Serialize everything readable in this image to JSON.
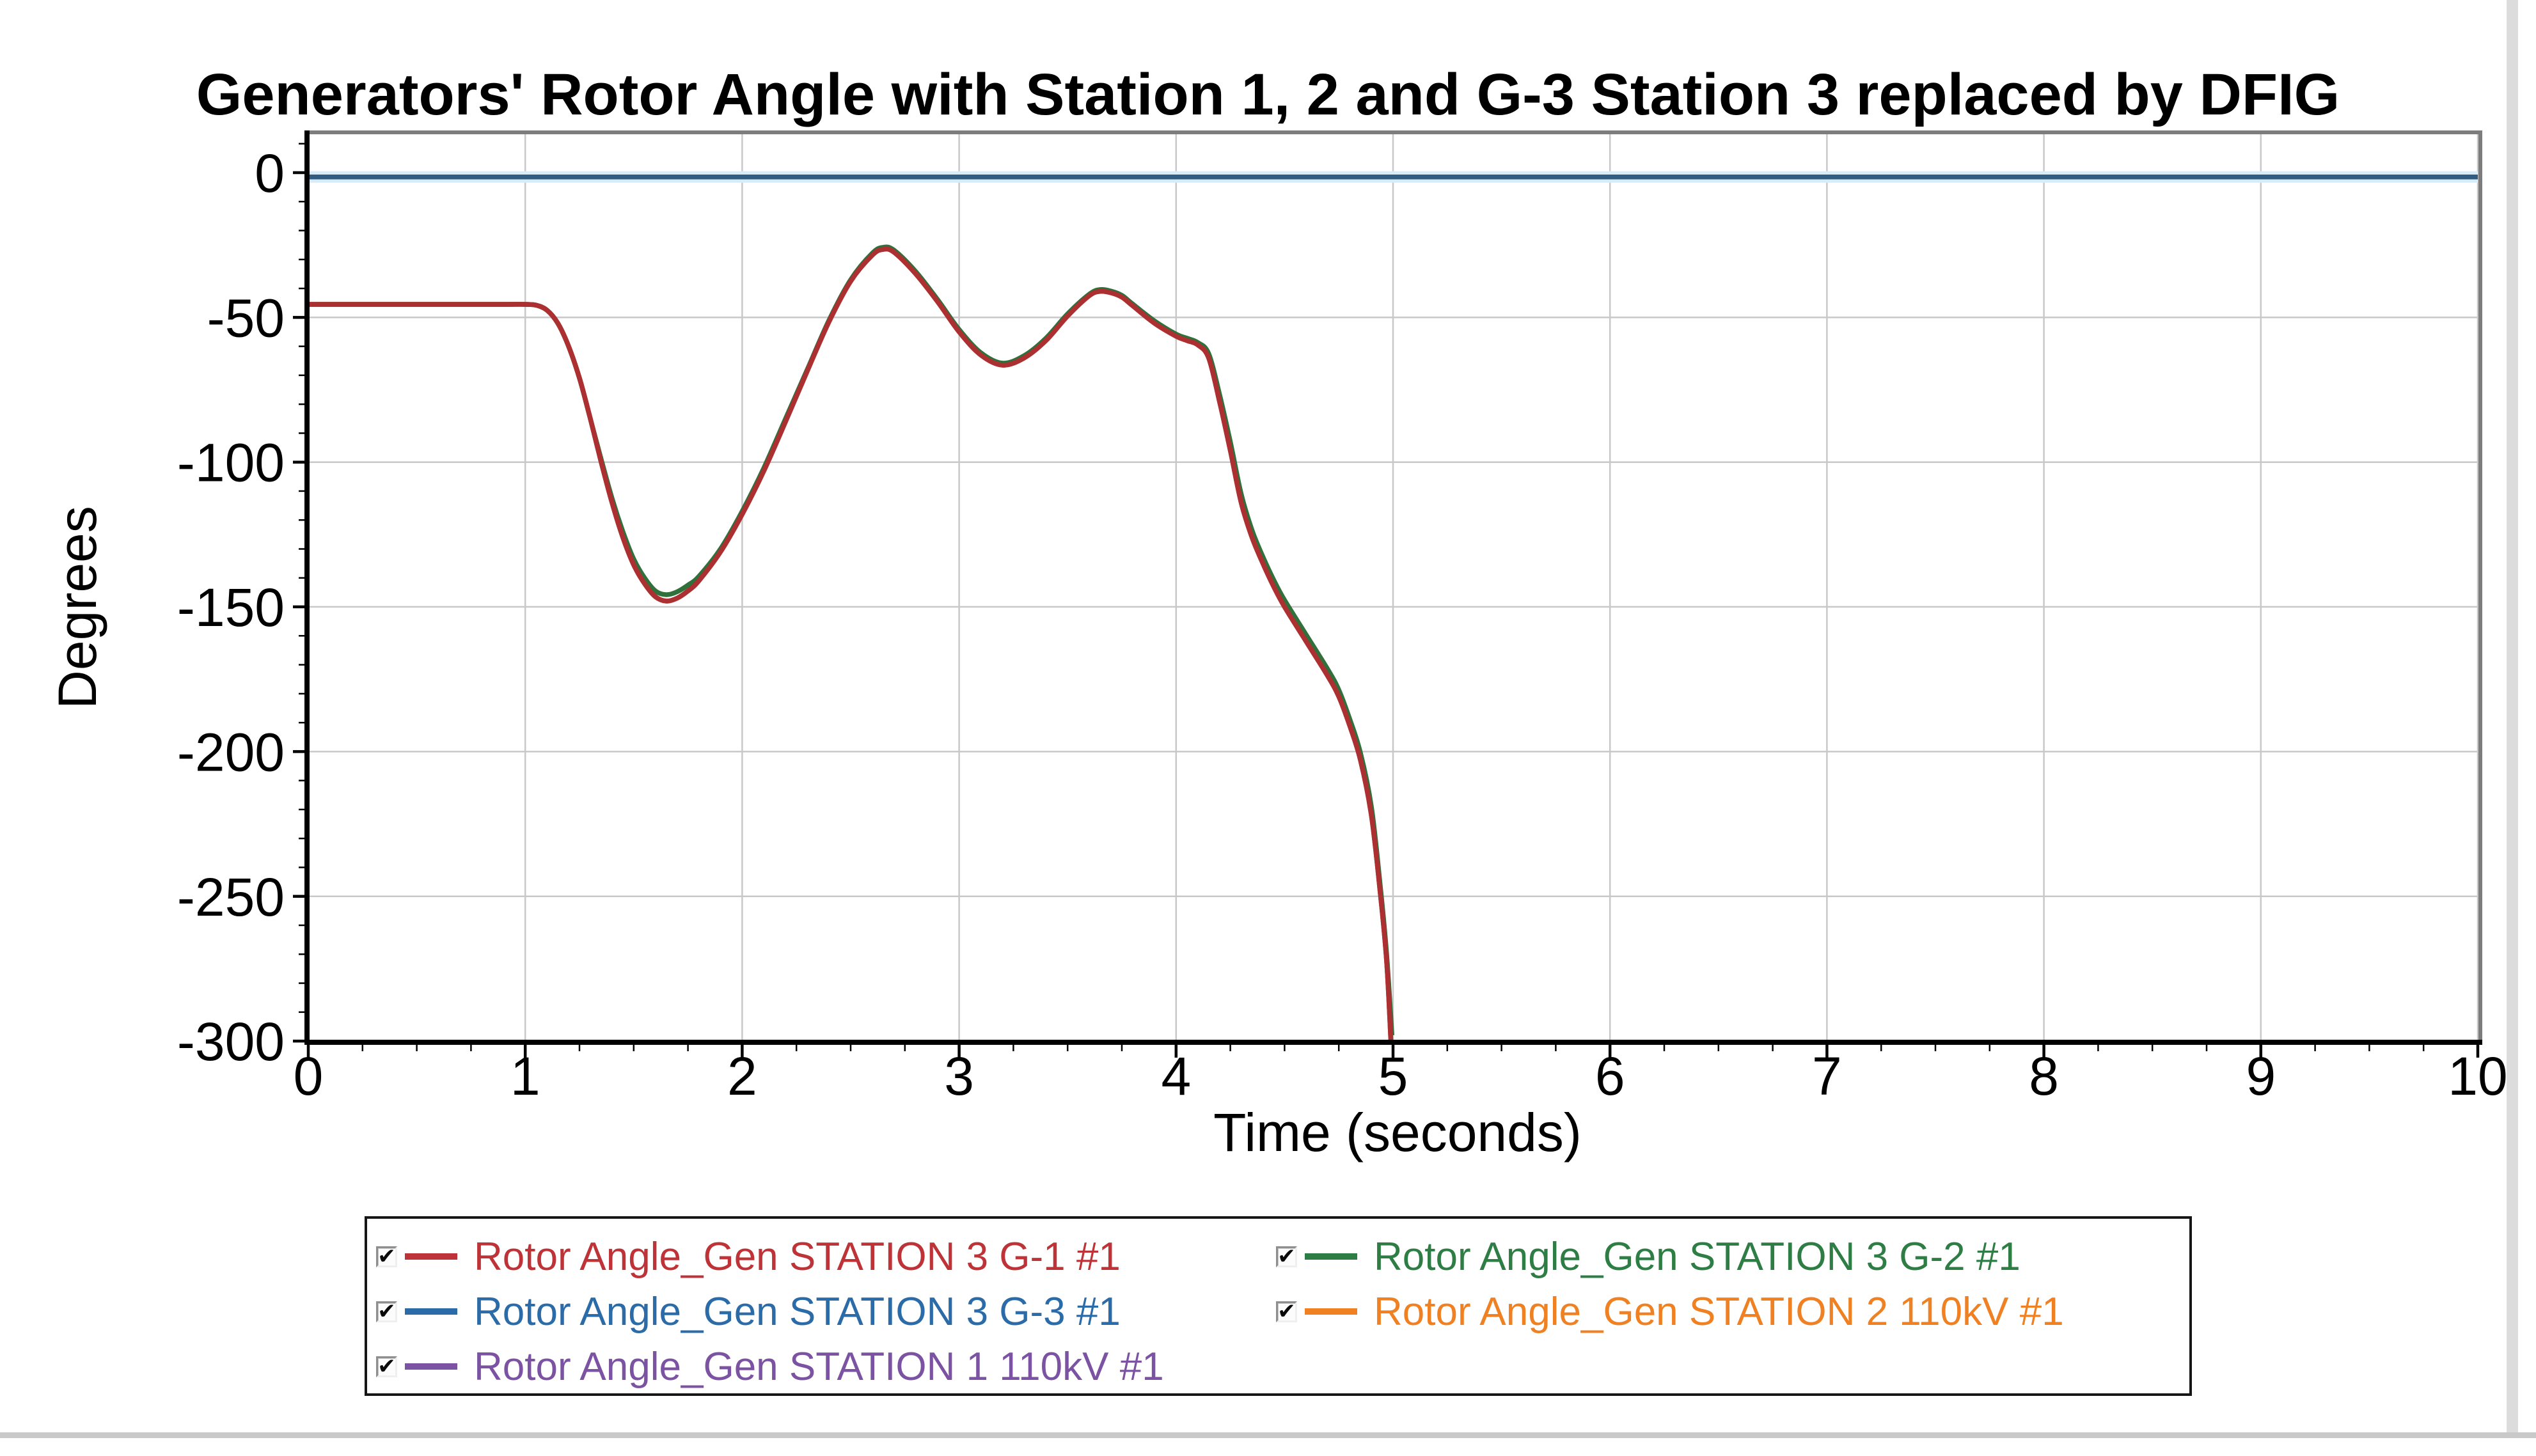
{
  "window": {
    "background": "#ffffff",
    "right_edge_color": "#dcdcdc",
    "bottom_edge_color": "#c9c9c9"
  },
  "chart": {
    "title": "Generators' Rotor Angle with Station 1, 2 and G-3 Station 3 replaced by DFIG",
    "x_axis": {
      "label": "Time (seconds)",
      "tick_labels": [
        "0",
        "1",
        "2",
        "3",
        "4",
        "5",
        "6",
        "7",
        "8",
        "9",
        "10"
      ],
      "tick_values": [
        0,
        1,
        2,
        3,
        4,
        5,
        6,
        7,
        8,
        9,
        10
      ],
      "minor_step": 0.25,
      "range": [
        0,
        10
      ]
    },
    "y_axis": {
      "label": "Degrees",
      "tick_labels": [
        "0",
        "-50",
        "-100",
        "-150",
        "-200",
        "-250",
        "-300"
      ],
      "tick_values": [
        0,
        -50,
        -100,
        -150,
        -200,
        -250,
        -300
      ],
      "minor_step": 10,
      "range": [
        -300,
        14
      ]
    },
    "frame_colors": {
      "left_bottom": "#000000",
      "top_right": "#7d7d7d"
    },
    "gridline_color": "#c8c8c8"
  },
  "chart_data": {
    "type": "line",
    "title": "Generators' Rotor Angle with Station 1, 2 and G-3 Station 3 replaced by DFIG",
    "xlabel": "Time (seconds)",
    "ylabel": "Degrees",
    "xlim": [
      0,
      10
    ],
    "ylim": [
      -300,
      14
    ],
    "grid": true,
    "legend_position": "bottom",
    "series": [
      {
        "name": "Rotor Angle_Gen STATION 3 G-1 #1",
        "color": "#BE3338",
        "line_color": "#AC2F32",
        "checked": true,
        "z": 5,
        "points": [
          [
            0,
            -45.5
          ],
          [
            0.5,
            -45.5
          ],
          [
            0.9,
            -45.5
          ],
          [
            1.0,
            -45.5
          ],
          [
            1.05,
            -45.8
          ],
          [
            1.1,
            -47.5
          ],
          [
            1.15,
            -52
          ],
          [
            1.2,
            -60
          ],
          [
            1.25,
            -71
          ],
          [
            1.3,
            -85
          ],
          [
            1.35,
            -100
          ],
          [
            1.4,
            -114
          ],
          [
            1.45,
            -126
          ],
          [
            1.5,
            -135.5
          ],
          [
            1.55,
            -142
          ],
          [
            1.6,
            -146.5
          ],
          [
            1.65,
            -148
          ],
          [
            1.7,
            -147
          ],
          [
            1.75,
            -144.5
          ],
          [
            1.8,
            -141
          ],
          [
            1.9,
            -131
          ],
          [
            2.0,
            -118
          ],
          [
            2.1,
            -103
          ],
          [
            2.2,
            -86
          ],
          [
            2.3,
            -68.5
          ],
          [
            2.4,
            -51.5
          ],
          [
            2.5,
            -37.5
          ],
          [
            2.6,
            -28.5
          ],
          [
            2.65,
            -26.5
          ],
          [
            2.7,
            -27.5
          ],
          [
            2.8,
            -35
          ],
          [
            2.9,
            -44.5
          ],
          [
            3.0,
            -55
          ],
          [
            3.1,
            -63
          ],
          [
            3.2,
            -66.5
          ],
          [
            3.3,
            -64
          ],
          [
            3.4,
            -58
          ],
          [
            3.5,
            -49.5
          ],
          [
            3.6,
            -42.5
          ],
          [
            3.65,
            -41
          ],
          [
            3.7,
            -41.5
          ],
          [
            3.75,
            -43
          ],
          [
            3.8,
            -46
          ],
          [
            3.9,
            -52
          ],
          [
            4.0,
            -56.5
          ],
          [
            4.05,
            -58
          ],
          [
            4.1,
            -59.5
          ],
          [
            4.15,
            -64
          ],
          [
            4.2,
            -79
          ],
          [
            4.25,
            -96
          ],
          [
            4.3,
            -114
          ],
          [
            4.35,
            -126
          ],
          [
            4.4,
            -135
          ],
          [
            4.45,
            -143
          ],
          [
            4.5,
            -150
          ],
          [
            4.6,
            -162
          ],
          [
            4.7,
            -174
          ],
          [
            4.75,
            -181
          ],
          [
            4.8,
            -191
          ],
          [
            4.85,
            -203
          ],
          [
            4.9,
            -222
          ],
          [
            4.94,
            -248
          ],
          [
            4.97,
            -272
          ],
          [
            4.99,
            -300
          ]
        ]
      },
      {
        "name": "Rotor Angle_Gen STATION 3 G-2 #1",
        "color": "#2E7D44",
        "line_color": "#30703A",
        "checked": true,
        "z": 4,
        "points": [
          [
            0,
            -45.5
          ],
          [
            0.5,
            -45.5
          ],
          [
            0.9,
            -45.5
          ],
          [
            1.0,
            -45.5
          ],
          [
            1.05,
            -45.8
          ],
          [
            1.1,
            -47.5
          ],
          [
            1.15,
            -52
          ],
          [
            1.2,
            -60
          ],
          [
            1.25,
            -71
          ],
          [
            1.3,
            -85
          ],
          [
            1.35,
            -99
          ],
          [
            1.4,
            -112.5
          ],
          [
            1.45,
            -124
          ],
          [
            1.5,
            -133.5
          ],
          [
            1.55,
            -140
          ],
          [
            1.6,
            -144.5
          ],
          [
            1.65,
            -145.8
          ],
          [
            1.7,
            -144.8
          ],
          [
            1.75,
            -142.5
          ],
          [
            1.8,
            -139.5
          ],
          [
            1.9,
            -130
          ],
          [
            2.0,
            -117
          ],
          [
            2.1,
            -102
          ],
          [
            2.2,
            -85
          ],
          [
            2.3,
            -68
          ],
          [
            2.4,
            -51
          ],
          [
            2.5,
            -37
          ],
          [
            2.6,
            -27.8
          ],
          [
            2.65,
            -25.8
          ],
          [
            2.7,
            -26.8
          ],
          [
            2.8,
            -34.2
          ],
          [
            2.9,
            -43.8
          ],
          [
            3.0,
            -54.2
          ],
          [
            3.1,
            -62.2
          ],
          [
            3.2,
            -65.8
          ],
          [
            3.3,
            -63.2
          ],
          [
            3.4,
            -57.2
          ],
          [
            3.5,
            -48.8
          ],
          [
            3.6,
            -42
          ],
          [
            3.65,
            -40.4
          ],
          [
            3.7,
            -40.9
          ],
          [
            3.75,
            -42.4
          ],
          [
            3.8,
            -45.4
          ],
          [
            3.9,
            -51.2
          ],
          [
            4.0,
            -55.8
          ],
          [
            4.05,
            -57.2
          ],
          [
            4.1,
            -58.7
          ],
          [
            4.15,
            -62.5
          ],
          [
            4.2,
            -76.5
          ],
          [
            4.25,
            -93
          ],
          [
            4.3,
            -111
          ],
          [
            4.35,
            -123.5
          ],
          [
            4.4,
            -132.7
          ],
          [
            4.45,
            -140.7
          ],
          [
            4.5,
            -147.7
          ],
          [
            4.6,
            -159.7
          ],
          [
            4.7,
            -171.7
          ],
          [
            4.75,
            -178.7
          ],
          [
            4.8,
            -188.7
          ],
          [
            4.85,
            -200.5
          ],
          [
            4.9,
            -219
          ],
          [
            4.94,
            -245.5
          ],
          [
            4.97,
            -269.5
          ],
          [
            4.995,
            -298
          ]
        ]
      },
      {
        "name": "Rotor Angle_Gen STATION 3 G-3 #1",
        "color": "#2B6CA8",
        "line_color": "#315B80",
        "halo_color": "#d7ecf7",
        "checked": true,
        "z": 1,
        "points": [
          [
            0,
            -1.5
          ],
          [
            10,
            -1.5
          ]
        ]
      },
      {
        "name": "Rotor Angle_Gen STATION 2 110kV #1",
        "color": "#F08122",
        "line_color": "#F08122",
        "checked": true,
        "z": 3,
        "points": [
          [
            0,
            -45.5
          ],
          [
            0.5,
            -45.5
          ],
          [
            0.9,
            -45.5
          ],
          [
            1.0,
            -45.5
          ],
          [
            1.05,
            -45.8
          ],
          [
            1.1,
            -47.5
          ],
          [
            1.15,
            -52
          ],
          [
            1.2,
            -60
          ],
          [
            1.25,
            -71
          ],
          [
            1.3,
            -85
          ],
          [
            1.35,
            -100
          ],
          [
            1.4,
            -114
          ],
          [
            1.45,
            -126
          ],
          [
            1.5,
            -135.5
          ],
          [
            1.55,
            -142
          ],
          [
            1.6,
            -146.5
          ],
          [
            1.65,
            -148
          ],
          [
            1.7,
            -147
          ],
          [
            1.75,
            -144.5
          ],
          [
            1.8,
            -141
          ],
          [
            1.9,
            -131
          ],
          [
            2.0,
            -118
          ],
          [
            2.1,
            -103
          ],
          [
            2.2,
            -86
          ],
          [
            2.3,
            -68.5
          ],
          [
            2.4,
            -51.5
          ],
          [
            2.5,
            -37.5
          ],
          [
            2.6,
            -28.5
          ],
          [
            2.65,
            -26.5
          ],
          [
            2.7,
            -27.5
          ],
          [
            2.8,
            -35
          ],
          [
            2.9,
            -44.5
          ],
          [
            3.0,
            -55
          ],
          [
            3.1,
            -63
          ],
          [
            3.2,
            -66.5
          ],
          [
            3.3,
            -64
          ],
          [
            3.4,
            -58
          ],
          [
            3.5,
            -49.5
          ],
          [
            3.6,
            -42.5
          ],
          [
            3.65,
            -41
          ],
          [
            3.7,
            -41.5
          ],
          [
            3.75,
            -43
          ],
          [
            3.8,
            -46
          ],
          [
            3.9,
            -52
          ],
          [
            4.0,
            -56.5
          ],
          [
            4.05,
            -58
          ],
          [
            4.1,
            -59.5
          ],
          [
            4.15,
            -64
          ],
          [
            4.2,
            -79
          ],
          [
            4.25,
            -96
          ],
          [
            4.3,
            -114
          ],
          [
            4.35,
            -126
          ],
          [
            4.4,
            -135
          ],
          [
            4.45,
            -143
          ],
          [
            4.5,
            -150
          ],
          [
            4.6,
            -162
          ],
          [
            4.7,
            -174
          ],
          [
            4.75,
            -181
          ],
          [
            4.8,
            -191
          ],
          [
            4.85,
            -203
          ],
          [
            4.9,
            -222
          ],
          [
            4.94,
            -248
          ],
          [
            4.97,
            -272
          ],
          [
            4.99,
            -300
          ]
        ]
      },
      {
        "name": "Rotor Angle_Gen STATION 1 110kV #1",
        "color": "#7C52A2",
        "line_color": "#7C52A2",
        "checked": true,
        "z": 2,
        "points": [
          [
            0,
            -45.5
          ],
          [
            0.5,
            -45.5
          ],
          [
            0.9,
            -45.5
          ],
          [
            1.0,
            -45.5
          ],
          [
            1.05,
            -45.8
          ],
          [
            1.1,
            -47.5
          ],
          [
            1.15,
            -52
          ],
          [
            1.2,
            -60
          ],
          [
            1.25,
            -71
          ],
          [
            1.3,
            -85
          ],
          [
            1.35,
            -100
          ],
          [
            1.4,
            -114
          ],
          [
            1.45,
            -126
          ],
          [
            1.5,
            -135.5
          ],
          [
            1.55,
            -142
          ],
          [
            1.6,
            -146.5
          ],
          [
            1.65,
            -148
          ],
          [
            1.7,
            -147
          ],
          [
            1.75,
            -144.5
          ],
          [
            1.8,
            -141
          ],
          [
            1.9,
            -131
          ],
          [
            2.0,
            -118
          ],
          [
            2.1,
            -103
          ],
          [
            2.2,
            -86
          ],
          [
            2.3,
            -68.5
          ],
          [
            2.4,
            -51.5
          ],
          [
            2.5,
            -37.5
          ],
          [
            2.6,
            -28.5
          ],
          [
            2.65,
            -26.5
          ],
          [
            2.7,
            -27.5
          ],
          [
            2.8,
            -35
          ],
          [
            2.9,
            -44.5
          ],
          [
            3.0,
            -55
          ],
          [
            3.1,
            -63
          ],
          [
            3.2,
            -66.5
          ],
          [
            3.3,
            -64
          ],
          [
            3.4,
            -58
          ],
          [
            3.5,
            -49.5
          ],
          [
            3.6,
            -42.5
          ],
          [
            3.65,
            -41
          ],
          [
            3.7,
            -41.5
          ],
          [
            3.75,
            -43
          ],
          [
            3.8,
            -46
          ],
          [
            3.9,
            -52
          ],
          [
            4.0,
            -56.5
          ],
          [
            4.05,
            -58
          ],
          [
            4.1,
            -59.5
          ],
          [
            4.15,
            -64
          ],
          [
            4.2,
            -79
          ],
          [
            4.25,
            -96
          ],
          [
            4.3,
            -114
          ],
          [
            4.35,
            -126
          ],
          [
            4.4,
            -135
          ],
          [
            4.45,
            -143
          ],
          [
            4.5,
            -150
          ],
          [
            4.6,
            -162
          ],
          [
            4.7,
            -174
          ],
          [
            4.75,
            -181
          ],
          [
            4.8,
            -191
          ],
          [
            4.85,
            -203
          ],
          [
            4.9,
            -222
          ],
          [
            4.94,
            -248
          ],
          [
            4.97,
            -272
          ],
          [
            4.99,
            -300
          ]
        ]
      }
    ]
  },
  "legend": {
    "checkbox_glyph": "✔"
  }
}
